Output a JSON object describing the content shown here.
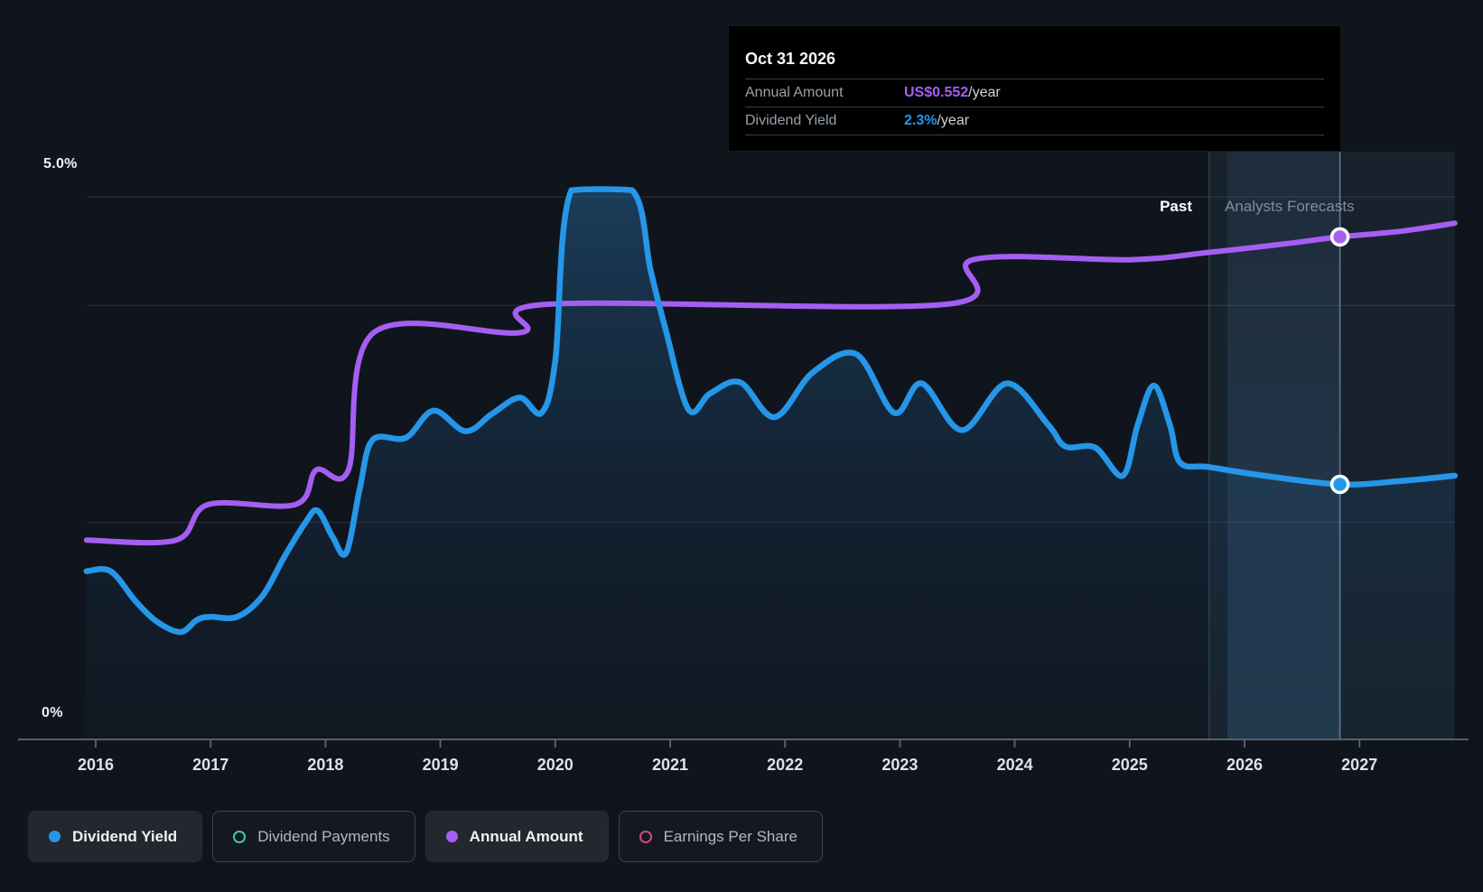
{
  "y_axis": {
    "top_label": "5.0%",
    "bottom_label": "0%"
  },
  "period_labels": {
    "past": "Past",
    "forecast": "Analysts Forecasts"
  },
  "tooltip": {
    "title": "Oct 31 2026",
    "rows": [
      {
        "label": "Annual Amount",
        "value": "US$0.552",
        "suffix": "/year",
        "value_color": "#a55ef2"
      },
      {
        "label": "Dividend Yield",
        "value": "2.3%",
        "suffix": "/year",
        "value_color": "#2196f3"
      }
    ]
  },
  "x_axis": {
    "years": [
      "2016",
      "2017",
      "2018",
      "2019",
      "2020",
      "2021",
      "2022",
      "2023",
      "2024",
      "2025",
      "2026",
      "2027"
    ]
  },
  "legend": {
    "items": [
      {
        "label": "Dividend Yield",
        "color": "#2596e8",
        "filled": true,
        "active": true
      },
      {
        "label": "Dividend Payments",
        "color": "#40c8b4",
        "filled": false,
        "active": false
      },
      {
        "label": "Annual Amount",
        "color": "#a55ef2",
        "filled": true,
        "active": true
      },
      {
        "label": "Earnings Per Share",
        "color": "#d0468e",
        "filled": false,
        "active": false
      }
    ]
  },
  "chart_data": {
    "type": "area",
    "x_range": [
      2015.92,
      2027.84
    ],
    "grid": true,
    "legend_position": "bottom",
    "y_axis_yield_pct": {
      "min": 0,
      "max": 5,
      "gridlines_pct": [
        5,
        4,
        2,
        0
      ],
      "top_label": "5.0%",
      "bottom_label": "0%"
    },
    "y_axis_amount_usd": {
      "min": 0,
      "max": 0.596
    },
    "past_until_year": 2025.69,
    "hover_marker": {
      "date": "Oct 31 2026",
      "year": 2026.83,
      "annual_amount_usd": 0.552,
      "dividend_yield_pct": 2.35,
      "band_start_year": 2025.85
    },
    "series": [
      {
        "name": "Dividend Yield",
        "unit": "%",
        "axis": "yield",
        "color": "#2596e8",
        "area": true,
        "visible": true,
        "points": [
          [
            2015.92,
            1.55
          ],
          [
            2016.13,
            1.55
          ],
          [
            2016.35,
            1.27
          ],
          [
            2016.54,
            1.08
          ],
          [
            2016.74,
            0.99
          ],
          [
            2016.88,
            1.1
          ],
          [
            2016.99,
            1.13
          ],
          [
            2017.23,
            1.13
          ],
          [
            2017.45,
            1.32
          ],
          [
            2017.64,
            1.68
          ],
          [
            2017.82,
            1.99
          ],
          [
            2017.93,
            2.11
          ],
          [
            2018.06,
            1.87
          ],
          [
            2018.18,
            1.72
          ],
          [
            2018.3,
            2.32
          ],
          [
            2018.41,
            2.76
          ],
          [
            2018.7,
            2.78
          ],
          [
            2018.94,
            3.03
          ],
          [
            2019.22,
            2.84
          ],
          [
            2019.45,
            3.0
          ],
          [
            2019.69,
            3.15
          ],
          [
            2019.88,
            3.01
          ],
          [
            2020.0,
            3.49
          ],
          [
            2020.14,
            5.06
          ],
          [
            2020.67,
            5.06
          ],
          [
            2020.83,
            4.32
          ],
          [
            2020.96,
            3.78
          ],
          [
            2021.16,
            3.04
          ],
          [
            2021.35,
            3.19
          ],
          [
            2021.61,
            3.29
          ],
          [
            2021.91,
            2.97
          ],
          [
            2022.24,
            3.38
          ],
          [
            2022.62,
            3.55
          ],
          [
            2022.95,
            3.01
          ],
          [
            2023.19,
            3.28
          ],
          [
            2023.54,
            2.85
          ],
          [
            2023.93,
            3.28
          ],
          [
            2024.29,
            2.9
          ],
          [
            2024.44,
            2.7
          ],
          [
            2024.7,
            2.69
          ],
          [
            2024.94,
            2.43
          ],
          [
            2025.07,
            2.9
          ],
          [
            2025.21,
            3.26
          ],
          [
            2025.35,
            2.9
          ],
          [
            2025.44,
            2.55
          ],
          [
            2025.69,
            2.51
          ],
          [
            2026.17,
            2.43
          ],
          [
            2026.83,
            2.35
          ],
          [
            2027.35,
            2.38
          ],
          [
            2027.83,
            2.43
          ]
        ]
      },
      {
        "name": "Annual Amount",
        "unit": "US$",
        "axis": "amount",
        "color": "#a55ef2",
        "area": false,
        "visible": true,
        "points": [
          [
            2015.92,
            0.219
          ],
          [
            2016.7,
            0.219
          ],
          [
            2016.98,
            0.258
          ],
          [
            2017.74,
            0.258
          ],
          [
            2017.92,
            0.296
          ],
          [
            2018.2,
            0.296
          ],
          [
            2018.42,
            0.447
          ],
          [
            2019.7,
            0.447
          ],
          [
            2019.93,
            0.478
          ],
          [
            2023.4,
            0.478
          ],
          [
            2023.64,
            0.527
          ],
          [
            2025.02,
            0.527
          ],
          [
            2025.69,
            0.535
          ],
          [
            2026.33,
            0.544
          ],
          [
            2026.83,
            0.552
          ],
          [
            2027.35,
            0.558
          ],
          [
            2027.83,
            0.567
          ]
        ]
      },
      {
        "name": "Dividend Payments",
        "unit": "",
        "axis": "amount",
        "color": "#40c8b4",
        "area": false,
        "visible": false,
        "points": []
      },
      {
        "name": "Earnings Per Share",
        "unit": "",
        "axis": "amount",
        "color": "#d0468e",
        "area": false,
        "visible": false,
        "points": []
      }
    ]
  }
}
